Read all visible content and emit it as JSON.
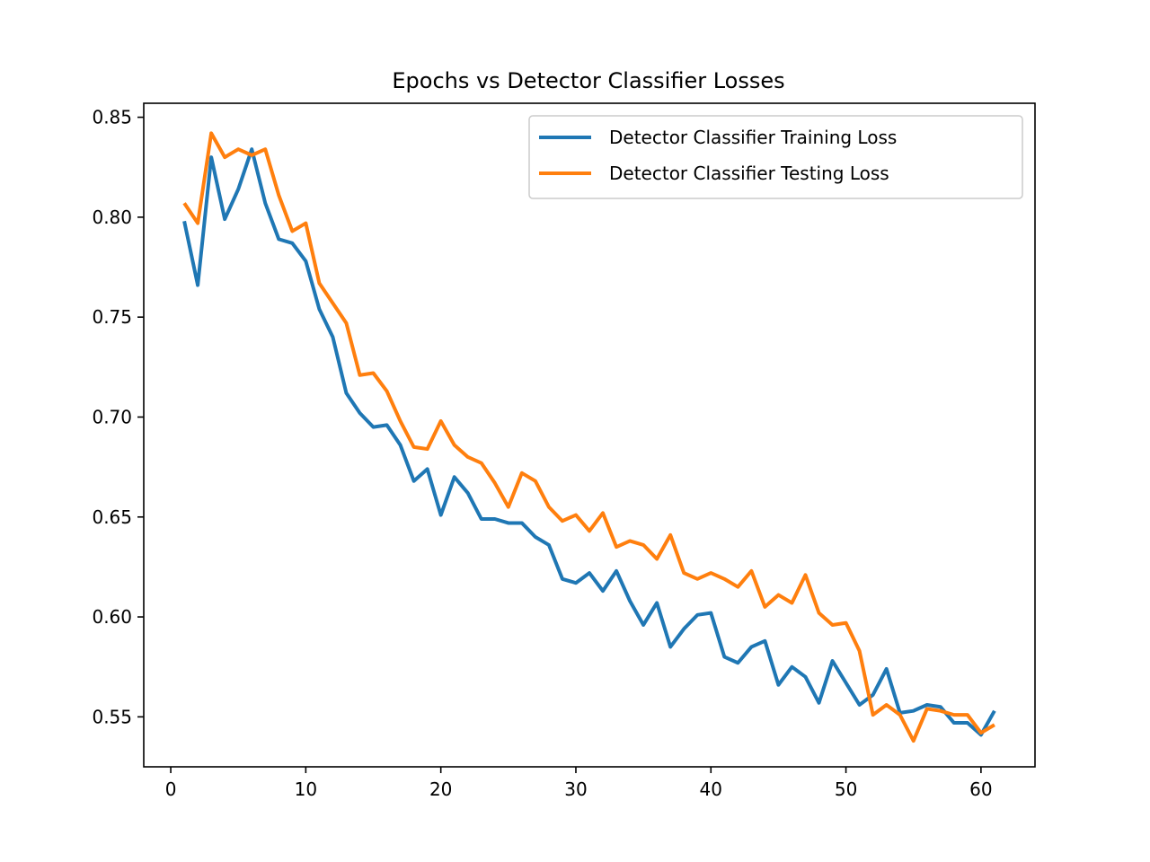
{
  "chart_data": {
    "type": "line",
    "title": "Epochs vs  Detector Classifier Losses",
    "xlabel": "",
    "ylabel": "",
    "xlim": [
      -2,
      64
    ],
    "ylim": [
      0.525,
      0.857
    ],
    "xticks": [
      0,
      10,
      20,
      30,
      40,
      50,
      60
    ],
    "yticks": [
      0.55,
      0.6,
      0.65,
      0.7,
      0.75,
      0.8,
      0.85
    ],
    "ytick_labels": [
      "0.55",
      "0.60",
      "0.65",
      "0.70",
      "0.75",
      "0.80",
      "0.85"
    ],
    "grid": false,
    "legend_position": "upper right",
    "x": [
      1,
      2,
      3,
      4,
      5,
      6,
      7,
      8,
      9,
      10,
      11,
      12,
      13,
      14,
      15,
      16,
      17,
      18,
      19,
      20,
      21,
      22,
      23,
      24,
      25,
      26,
      27,
      28,
      29,
      30,
      31,
      32,
      33,
      34,
      35,
      36,
      37,
      38,
      39,
      40,
      41,
      42,
      43,
      44,
      45,
      46,
      47,
      48,
      49,
      50,
      51,
      52,
      53,
      54,
      55,
      56,
      57,
      58,
      59,
      60,
      61
    ],
    "series": [
      {
        "name": "Detector Classifier Training Loss",
        "color": "#1f77b4",
        "values": [
          0.798,
          0.766,
          0.83,
          0.799,
          0.814,
          0.834,
          0.807,
          0.789,
          0.787,
          0.778,
          0.754,
          0.74,
          0.712,
          0.702,
          0.695,
          0.696,
          0.686,
          0.668,
          0.674,
          0.651,
          0.67,
          0.662,
          0.649,
          0.649,
          0.647,
          0.647,
          0.64,
          0.636,
          0.619,
          0.617,
          0.622,
          0.613,
          0.623,
          0.608,
          0.596,
          0.607,
          0.585,
          0.594,
          0.601,
          0.602,
          0.58,
          0.577,
          0.585,
          0.588,
          0.566,
          0.575,
          0.57,
          0.557,
          0.578,
          0.567,
          0.556,
          0.561,
          0.574,
          0.552,
          0.553,
          0.556,
          0.555,
          0.547,
          0.547,
          0.541,
          0.553
        ]
      },
      {
        "name": "Detector Classifier Testing Loss",
        "color": "#ff7f0e",
        "values": [
          0.807,
          0.797,
          0.842,
          0.83,
          0.834,
          0.831,
          0.834,
          0.811,
          0.793,
          0.797,
          0.767,
          0.757,
          0.747,
          0.721,
          0.722,
          0.713,
          0.698,
          0.685,
          0.684,
          0.698,
          0.686,
          0.68,
          0.677,
          0.667,
          0.655,
          0.672,
          0.668,
          0.655,
          0.648,
          0.651,
          0.643,
          0.652,
          0.635,
          0.638,
          0.636,
          0.629,
          0.641,
          0.622,
          0.619,
          0.622,
          0.619,
          0.615,
          0.623,
          0.605,
          0.611,
          0.607,
          0.621,
          0.602,
          0.596,
          0.597,
          0.583,
          0.551,
          0.556,
          0.551,
          0.538,
          0.554,
          0.553,
          0.551,
          0.551,
          0.542,
          0.546
        ]
      }
    ]
  }
}
